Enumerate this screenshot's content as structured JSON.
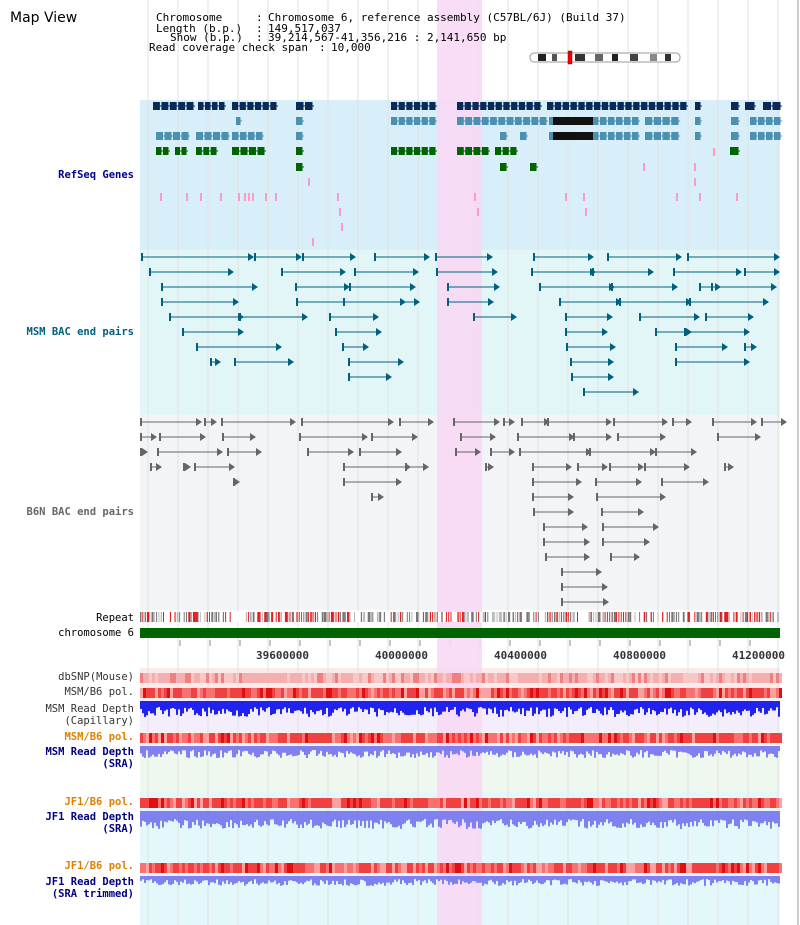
{
  "title": "Map View",
  "header": {
    "chromosome_key": "Chromosome",
    "chromosome_val": "Chromosome 6, reference assembly (C57BL/6J) (Build 37)",
    "length_key": "Length (b.p.)",
    "length_val": "149,517,037",
    "show_key": "Show (b.p.)",
    "show_val": "39,214,567-41,356,216 : 2,141,650 bp",
    "coverage_key": "Read coverage check span",
    "coverage_val": "10,000"
  },
  "tracks": {
    "refseq": "RefSeq Genes",
    "msm_bac": "MSM BAC end pairs",
    "b6n_bac": "B6N BAC end pairs",
    "repeat": "Repeat",
    "chromosome": "chromosome 6",
    "dbsnp": "dbSNP(Mouse)",
    "msm_b6_pol": "MSM/B6 pol.",
    "msm_depth_cap_1": "MSM Read Depth",
    "msm_depth_cap_2": "(Capillary)",
    "msm_b6_pol_2": "MSM/B6 pol.",
    "msm_depth_sra_1": "MSM Read Depth",
    "msm_depth_sra_2": "(SRA)",
    "jf1_b6_pol": "JF1/B6 pol.",
    "jf1_depth_sra_1": "JF1 Read Depth",
    "jf1_depth_sra_2": "(SRA)",
    "jf1_b6_pol_2": "JF1/B6 pol.",
    "jf1_depth_trim_1": "JF1 Read Depth",
    "jf1_depth_trim_2": "(SRA trimmed)"
  },
  "ruler": {
    "ticks": [
      "39600000",
      "40000000",
      "40400000",
      "40800000",
      "41200000"
    ]
  },
  "colors": {
    "highlight": "#f8d8f4",
    "refseq_dark": "#0a2a5a",
    "refseq_mid": "#4a90b0",
    "refseq_green": "#006400",
    "msm_line": "#006080",
    "b6n_line": "#666666",
    "chromosome": "#006400",
    "depth_blue": "#2222ee",
    "depth_light": "#8080f0"
  }
}
